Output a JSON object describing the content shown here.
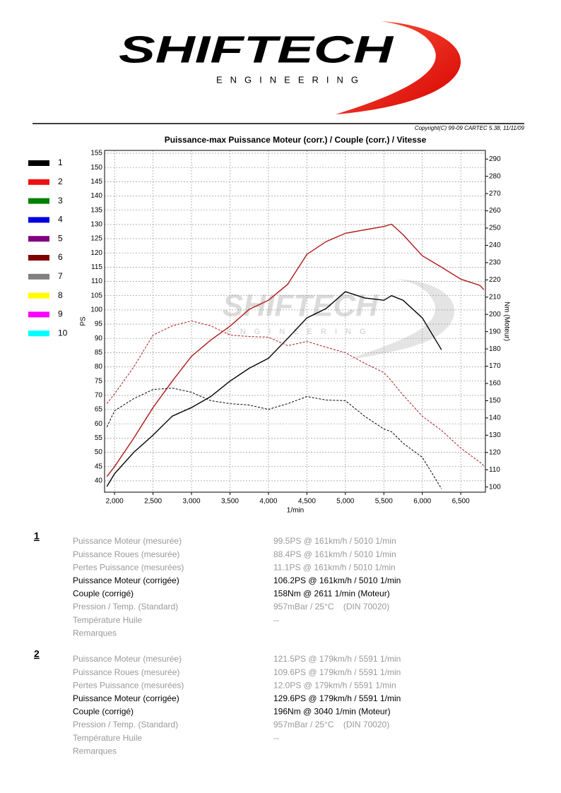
{
  "header": {
    "logo": "SHIFTECH",
    "logo_sub": "ENGINEERING",
    "copyright": "Copyright(C) 99-09 CARTEC 5.38, 11/11/09"
  },
  "chart_data": {
    "type": "line",
    "title": "Puissance-max Puissance Moteur (corr.) / Couple (corr.) / Vitesse",
    "x_label": "1/min",
    "y_label": "PS",
    "y2_label": "Nm (Moteur)",
    "xlim": [
      1870,
      6820
    ],
    "xticks": [
      {
        "value": 2000,
        "label": "2,000"
      },
      {
        "value": 2500,
        "label": "2,500"
      },
      {
        "value": 3000,
        "label": "3,000"
      },
      {
        "value": 3500,
        "label": "3,500"
      },
      {
        "value": 4000,
        "label": "4,000"
      },
      {
        "value": 4500,
        "label": "4,500"
      },
      {
        "value": 5000,
        "label": "5,000"
      },
      {
        "value": 5500,
        "label": "5,500"
      },
      {
        "value": 6000,
        "label": "6,000"
      },
      {
        "value": 6500,
        "label": "6,500"
      }
    ],
    "ylim": [
      36,
      156
    ],
    "yticks": [
      40,
      45,
      50,
      55,
      60,
      65,
      70,
      75,
      80,
      85,
      90,
      95,
      100,
      105,
      110,
      115,
      120,
      125,
      130,
      135,
      140,
      145,
      150,
      155
    ],
    "y2lim": [
      97,
      295
    ],
    "y2ticks": [
      100,
      110,
      120,
      130,
      140,
      150,
      160,
      170,
      180,
      190,
      200,
      210,
      220,
      230,
      240,
      250,
      260,
      270,
      280,
      290
    ],
    "grid": true,
    "legend": [
      {
        "label": "1",
        "color": "#000000"
      },
      {
        "label": "2",
        "color": "#ee1111"
      },
      {
        "label": "3",
        "color": "#008000"
      },
      {
        "label": "4",
        "color": "#0000e0"
      },
      {
        "label": "5",
        "color": "#800080"
      },
      {
        "label": "6",
        "color": "#800000"
      },
      {
        "label": "7",
        "color": "#808080"
      },
      {
        "label": "8",
        "color": "#ffff00"
      },
      {
        "label": "9",
        "color": "#ff00ff"
      },
      {
        "label": "10",
        "color": "#00ffff"
      }
    ],
    "x": [
      1900,
      2000,
      2250,
      2500,
      2750,
      3000,
      3250,
      3500,
      3750,
      4000,
      4250,
      4500,
      4750,
      5000,
      5250,
      5500,
      5600,
      5750,
      6000,
      6250,
      6500,
      6750,
      6800
    ],
    "series": [
      {
        "color": "#000000",
        "dashed": false,
        "values": [
          38,
          42.5,
          50,
          56,
          62.7,
          65.7,
          69.6,
          75,
          79.5,
          83,
          90,
          97.2,
          100.5,
          106.4,
          104.2,
          103.4,
          105,
          103.4,
          97.2,
          86,
          null,
          null,
          null
        ]
      },
      {
        "color": "#b01818",
        "dashed": false,
        "values": [
          41.5,
          45,
          55,
          65.7,
          75,
          83.7,
          89.4,
          94.3,
          100.2,
          103.4,
          109,
          119.5,
          124,
          126.9,
          128.1,
          129.3,
          130.1,
          126.4,
          119,
          115,
          110.8,
          108.6,
          107.1
        ]
      },
      {
        "color": "#000000",
        "dashed": true,
        "axis": "y2",
        "values": [
          134.8,
          144.2,
          151.2,
          156.5,
          157.3,
          154.9,
          150,
          148.3,
          147.5,
          145,
          148.3,
          152.4,
          150.4,
          150,
          141,
          133.6,
          132,
          125.4,
          117.2,
          99,
          null,
          null,
          null
        ]
      },
      {
        "color": "#b01818",
        "dashed": true,
        "axis": "y2",
        "values": [
          148.3,
          154,
          169.6,
          188,
          193.4,
          196.2,
          193.4,
          188,
          187.2,
          186.8,
          181.9,
          184.3,
          181,
          177.8,
          171.7,
          166.3,
          161.4,
          153.2,
          141,
          132.8,
          122.5,
          114.3,
          112.3
        ]
      }
    ]
  },
  "report": [
    {
      "run": "1",
      "rows": [
        {
          "label": "Puissance Moteur (mesurée)",
          "value": "99.5PS @ 161km/h / 5010 1/min"
        },
        {
          "label": "Puissance Roues (mesurée)",
          "value": "88.4PS @ 161km/h / 5010 1/min"
        },
        {
          "label": "Pertes Puissance (mesurées)",
          "value": "11.1PS @ 161km/h / 5010 1/min"
        },
        {
          "label": "Puissance Moteur (corrigée)",
          "value": "106.2PS @ 161km/h / 5010 1/min"
        },
        {
          "label": "Couple (corrigé)",
          "value": "158Nm @ 2611 1/min (Moteur)"
        },
        {
          "label": "Pression / Temp. (Standard)",
          "value": "957mBar / 25°C    (DIN 70020)"
        },
        {
          "label": "Température Huile",
          "value": "--"
        },
        {
          "label": "Remarques"
        }
      ]
    },
    {
      "run": "2",
      "rows": [
        {
          "label": "Puissance Moteur (mesurée)",
          "value": "121.5PS @ 179km/h / 5591 1/min"
        },
        {
          "label": "Puissance Roues (mesurée)",
          "value": "109.6PS @ 179km/h / 5591 1/min"
        },
        {
          "label": "Pertes Puissance (mesurées)",
          "value": "12.0PS @ 179km/h / 5591 1/min"
        },
        {
          "label": "Puissance Moteur (corrigée)",
          "value": "129.6PS @ 179km/h / 5591 1/min"
        },
        {
          "label": "Couple (corrigé)",
          "value": "196Nm @ 3040 1/min (Moteur)"
        },
        {
          "label": "Pression / Temp. (Standard)",
          "value": "957mBar / 25°C    (DIN 70020)"
        },
        {
          "label": "Température Huile",
          "value": "--"
        },
        {
          "label": "Remarques"
        }
      ]
    }
  ]
}
